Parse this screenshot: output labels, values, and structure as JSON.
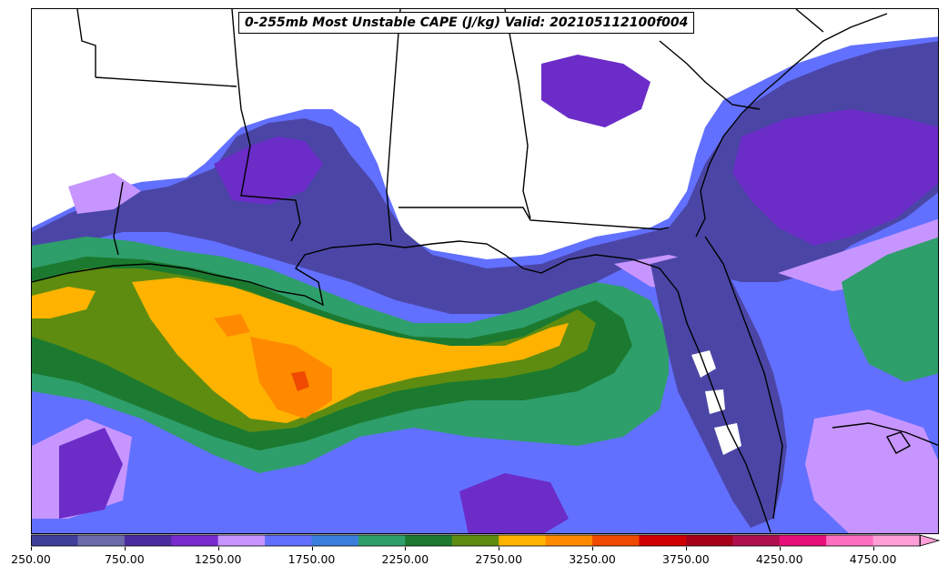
{
  "title": "0-255mb Most Unstable CAPE (J/kg) Valid: 202105112100f004",
  "colorbar": {
    "min": 250,
    "max": 4750,
    "step": 250,
    "extend": "max",
    "tick_labels": [
      "250.00",
      "750.00",
      "1250.00",
      "1750.00",
      "2250.00",
      "2750.00",
      "3250.00",
      "3750.00",
      "4250.00",
      "4750.00"
    ],
    "colors": [
      "#3f3f9a",
      "#6b6bab",
      "#4b2c9f",
      "#7a2bd0",
      "#c795ff",
      "#6270ff",
      "#3a7fdc",
      "#2e9e6b",
      "#1b7a2f",
      "#5e8c10",
      "#ffb300",
      "#ff8a00",
      "#f04a00",
      "#d10000",
      "#a6001a",
      "#b0104f",
      "#e8107a",
      "#ff6fc0",
      "#ff9fd8"
    ],
    "extend_color": "#ff9fd8"
  },
  "map": {
    "background": "#ffffff",
    "boundary_color": "#000000"
  }
}
